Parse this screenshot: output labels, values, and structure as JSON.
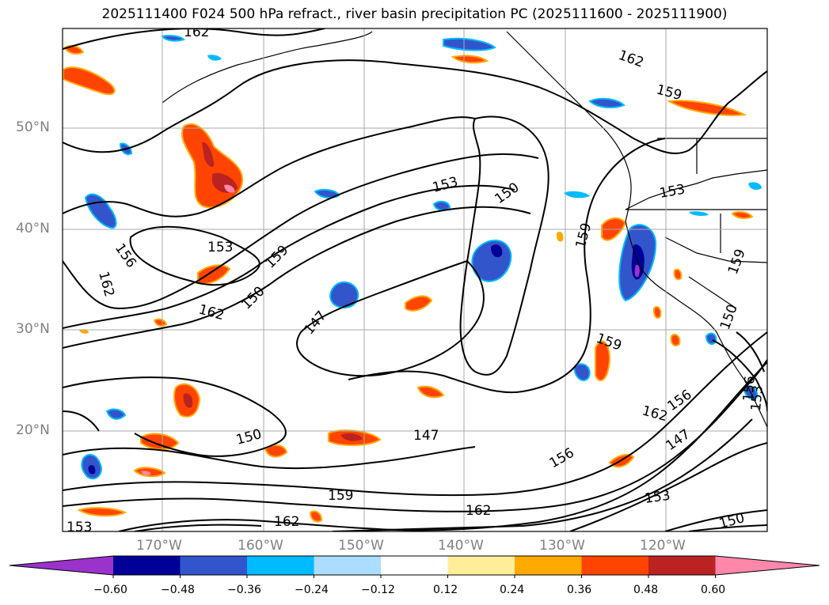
{
  "title": "2025111400 F024 500 hPa refract., river basin precipitation PC (2025111600 - 2025111900)",
  "lat_labels": [
    "50°N",
    "40°N",
    "30°N",
    "20°N"
  ],
  "lon_labels": [
    "170°W",
    "160°W",
    "150°W",
    "140°W",
    "130°W",
    "120°W"
  ],
  "contour_labels": [
    "162",
    "162",
    "159",
    "153",
    "150",
    "153",
    "159",
    "153",
    "156",
    "162",
    "162",
    "159",
    "150",
    "147",
    "150",
    "159",
    "159",
    "147",
    "150",
    "156",
    "162",
    "147",
    "156",
    "159",
    "162",
    "162",
    "153",
    "150",
    "153",
    "156",
    "153"
  ],
  "colorbar": {
    "colors": [
      "#9933cc",
      "#000099",
      "#3355cc",
      "#00bbff",
      "#aaddff",
      "#ffffff",
      "#ffee99",
      "#ffaa00",
      "#ff4400",
      "#bb2222",
      "#ff88aa"
    ],
    "tick_labels": [
      "−0.60",
      "−0.48",
      "−0.36",
      "−0.24",
      "−0.12",
      "0.12",
      "0.24",
      "0.36",
      "0.48",
      "0.60"
    ]
  }
}
